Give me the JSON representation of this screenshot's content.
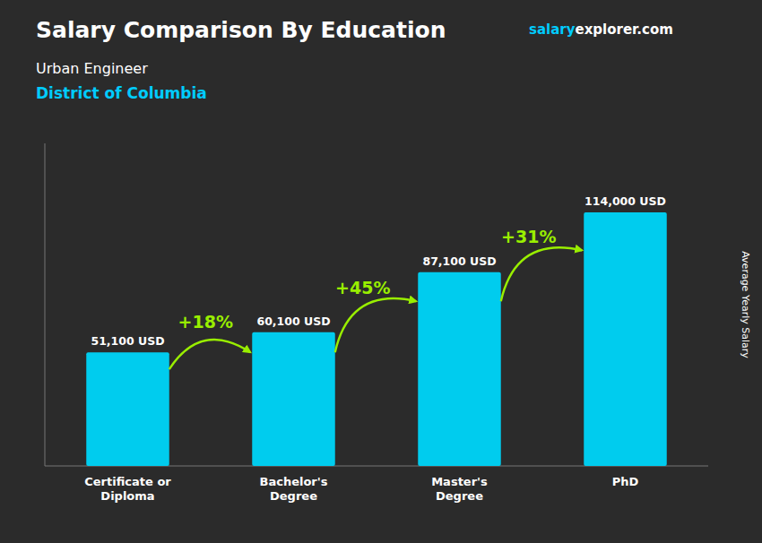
{
  "chart_data": {
    "type": "bar",
    "title": "Salary Comparison By Education",
    "subtitle": [
      "Urban Engineer",
      "District of Columbia"
    ],
    "watermark": [
      "salary",
      "explorer.com"
    ],
    "ylabel": "Average Yearly Salary",
    "categories": [
      "Certificate or\nDiploma",
      "Bachelor's\nDegree",
      "Master's\nDegree",
      "PhD"
    ],
    "values": [
      51100,
      60100,
      87100,
      114000
    ],
    "value_labels": [
      "51,100 USD",
      "60,100 USD",
      "87,100 USD",
      "114,000 USD"
    ],
    "annotations": [
      "+18%",
      "+45%",
      "+31%"
    ],
    "color": "#00ccee",
    "ylim": [
      0,
      145000
    ],
    "data_labels": true,
    "tick_labels": "x",
    "grid": false
  }
}
